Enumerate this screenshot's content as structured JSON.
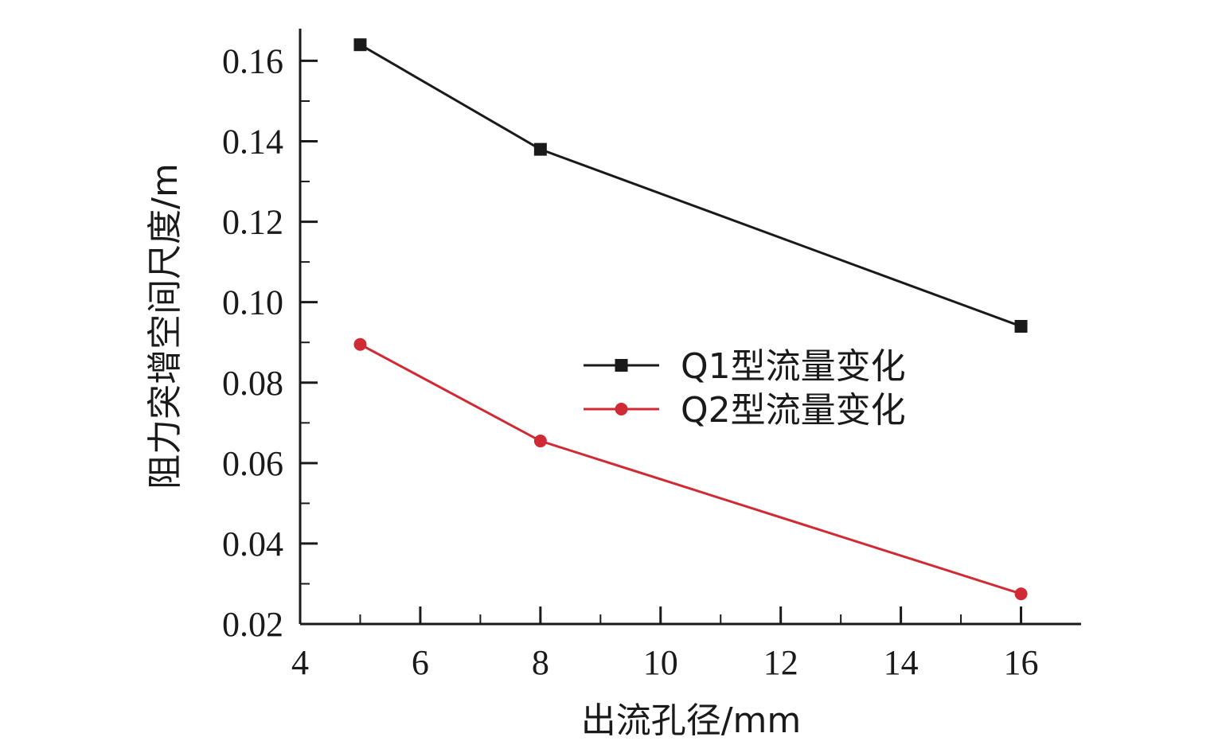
{
  "chart_data": {
    "type": "line",
    "title": "",
    "xlabel": "出流孔径/mm",
    "ylabel": "阻力突增空间尺度/m",
    "xlim": [
      4,
      17
    ],
    "ylim": [
      0.02,
      0.168
    ],
    "xticks": [
      4,
      6,
      8,
      10,
      12,
      14,
      16
    ],
    "xtick_labels": [
      "4",
      "6",
      "8",
      "10",
      "12",
      "14",
      "16"
    ],
    "yticks": [
      0.02,
      0.04,
      0.06,
      0.08,
      0.1,
      0.12,
      0.14,
      0.16
    ],
    "ytick_labels": [
      "0.02",
      "0.04",
      "0.06",
      "0.08",
      "0.10",
      "0.12",
      "0.14",
      "0.16"
    ],
    "grid": false,
    "legend_position": "center-right",
    "series": [
      {
        "name": "Q1型流量变化",
        "color": "#1a1a1a",
        "marker": "square",
        "x": [
          5,
          8,
          16
        ],
        "y": [
          0.164,
          0.138,
          0.094
        ]
      },
      {
        "name": "Q2型流量变化",
        "color": "#d02a35",
        "marker": "circle",
        "x": [
          5,
          8,
          16
        ],
        "y": [
          0.0895,
          0.0655,
          0.0275
        ]
      }
    ]
  }
}
